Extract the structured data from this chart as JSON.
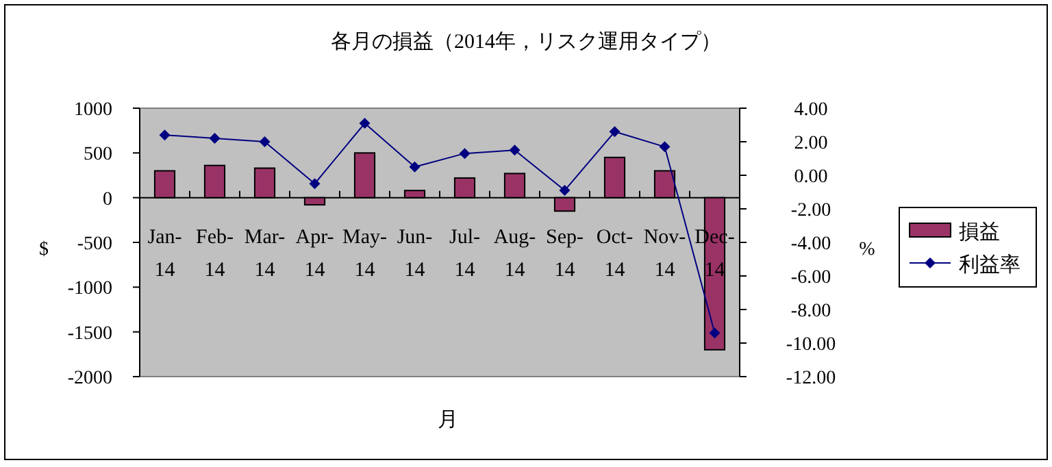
{
  "chart_data": {
    "type": "bar",
    "title": "各月の損益（2014年，リスク運用タイプ）",
    "xlabel": "月",
    "ylabel": "$",
    "y2label": "%",
    "categories": [
      "Jan-14",
      "Feb-14",
      "Mar-14",
      "Apr-14",
      "May-14",
      "Jun-14",
      "Jul-14",
      "Aug-14",
      "Sep-14",
      "Oct-14",
      "Nov-14",
      "Dec-14"
    ],
    "series": [
      {
        "name": "損益",
        "color": "#993366",
        "values": [
          300,
          360,
          330,
          -80,
          500,
          80,
          220,
          270,
          -150,
          450,
          300,
          -1700
        ]
      },
      {
        "name": "利益率",
        "type": "line",
        "axis": "y2",
        "color": "#000080",
        "marker": "diamond",
        "values": [
          2.4,
          2.2,
          2,
          -0.5,
          3.1,
          0.5,
          1.3,
          1.5,
          -0.9,
          2.6,
          1.7,
          -9.4
        ]
      }
    ],
    "ylim": [
      -2000,
      1000
    ],
    "yticks": [
      -2000,
      -1500,
      -1000,
      -500,
      0,
      500,
      1000
    ],
    "y2lim": [
      -12,
      4
    ],
    "y2ticks": [
      {
        "value": -12,
        "label": "-12.00"
      },
      {
        "value": -10,
        "label": "-10.00"
      },
      {
        "value": -8,
        "label": "-8.00"
      },
      {
        "value": -6,
        "label": "-6.00"
      },
      {
        "value": -4,
        "label": "-4.00"
      },
      {
        "value": -2,
        "label": "-2.00"
      },
      {
        "value": 0,
        "label": "0.00"
      },
      {
        "value": 2,
        "label": "2.00"
      },
      {
        "value": 4,
        "label": "4.00"
      }
    ],
    "legend": "right",
    "grid": false
  }
}
